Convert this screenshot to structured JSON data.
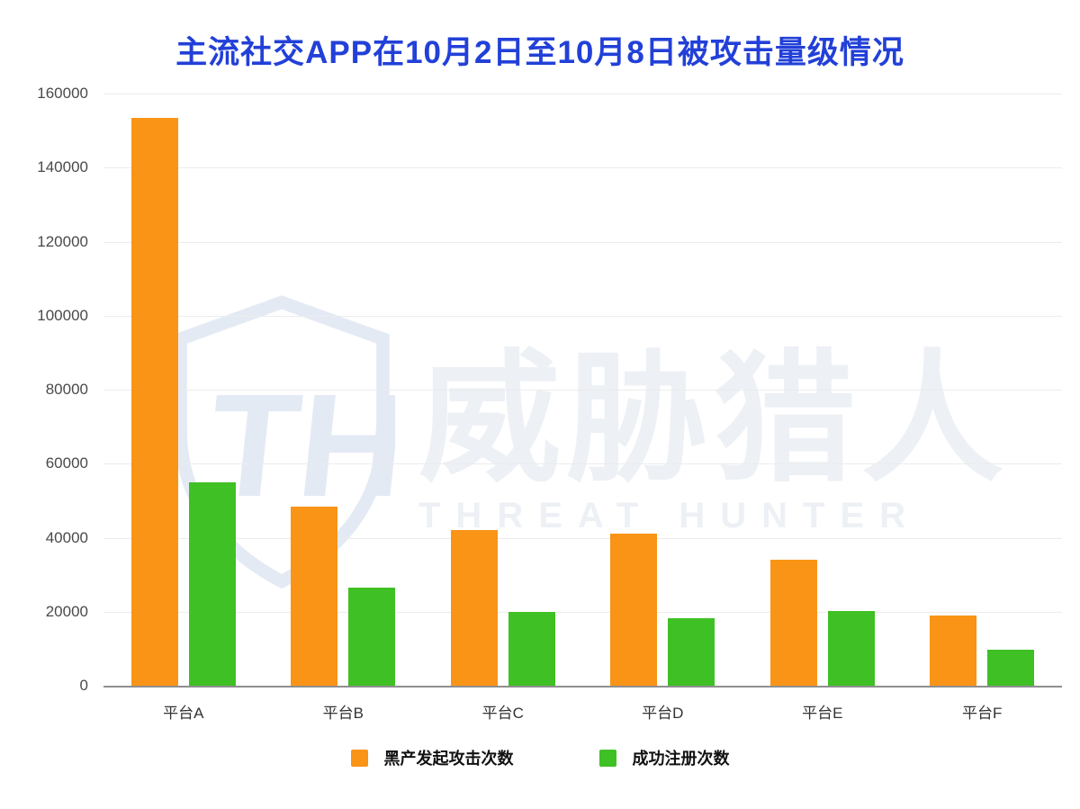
{
  "watermark": {
    "logo": "threat-hunter-shield-icon",
    "monogram": "TH",
    "chinese": "威胁猎人",
    "english": "THREAT HUNTER"
  },
  "colors": {
    "title": "#2240D8",
    "attack_orange": "#F99417",
    "register_green": "#3FC024",
    "grid": "#ECECEC",
    "axis_line": "#8F8F8F",
    "tick_text": "#4A4A4A",
    "category_text": "#333333",
    "legend_text": "#111111",
    "watermark": "#EDF0F5"
  },
  "chart_data": {
    "type": "bar",
    "title": "主流社交APP在10月2日至10月8日被攻击量级情况",
    "categories": [
      "平台A",
      "平台B",
      "平台C",
      "平台D",
      "平台E",
      "平台F"
    ],
    "series": [
      {
        "name": "黑产发起攻击次数",
        "color": "#F99417",
        "values": [
          153500,
          48500,
          42000,
          41000,
          34000,
          19000
        ]
      },
      {
        "name": "成功注册次数",
        "color": "#3FC024",
        "values": [
          55000,
          26500,
          20000,
          18300,
          20300,
          9800
        ]
      }
    ],
    "xlabel": "",
    "ylabel": "",
    "ylim": [
      0,
      160000
    ],
    "ytick_step": 20000,
    "ytick_labels": [
      "0",
      "20000",
      "40000",
      "60000",
      "80000",
      "100000",
      "120000",
      "140000",
      "160000"
    ],
    "grid": true,
    "legend_position": "bottom"
  }
}
